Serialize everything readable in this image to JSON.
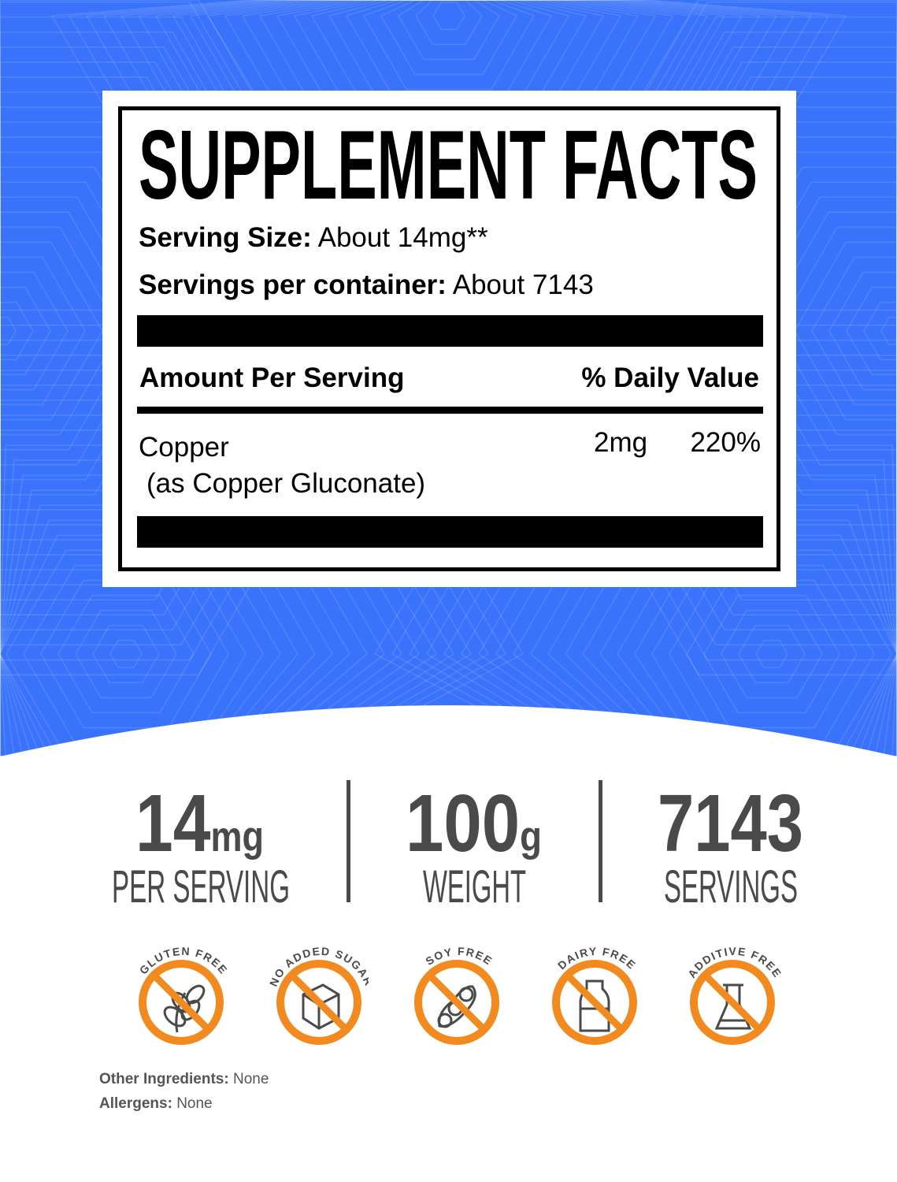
{
  "colors": {
    "background": "#3a73fb",
    "accent": "#f28a1f",
    "text_gray": "#4a4a4a"
  },
  "label": {
    "title": "SUPPLEMENT FACTS",
    "serving_size_label": "Serving Size:",
    "serving_size_value": "About 14mg**",
    "servings_label": "Servings per container:",
    "servings_value": "About 7143",
    "amount_header": "Amount Per Serving",
    "dv_header": "% Daily Value",
    "rows": [
      {
        "name": "Copper",
        "sub": "(as Copper Gluconate)",
        "amount": "2mg",
        "dv": "220%"
      }
    ]
  },
  "stats": [
    {
      "value": "14",
      "unit": "mg",
      "label": "PER SERVING"
    },
    {
      "value": "100",
      "unit": "g",
      "label": "WEIGHT"
    },
    {
      "value": "7143",
      "unit": "",
      "label": "SERVINGS"
    }
  ],
  "badges": [
    {
      "text": "GLUTEN FREE",
      "icon": "wheat-icon"
    },
    {
      "text": "NO ADDED SUGAR",
      "icon": "sugar-cube-icon"
    },
    {
      "text": "SOY FREE",
      "icon": "soybean-icon"
    },
    {
      "text": "DAIRY FREE",
      "icon": "milk-bottle-icon"
    },
    {
      "text": "ADDITIVE FREE",
      "icon": "flask-icon"
    }
  ],
  "footer": {
    "other_label": "Other Ingredients:",
    "other_value": "None",
    "allergens_label": "Allergens:",
    "allergens_value": "None"
  }
}
